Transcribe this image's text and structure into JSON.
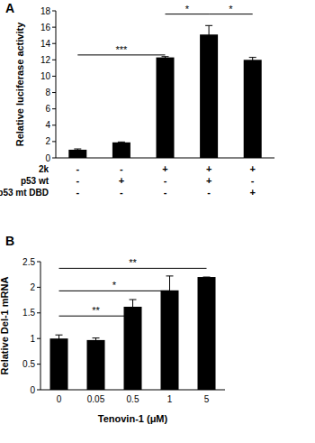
{
  "chart_data": [
    {
      "type": "bar",
      "title": "A",
      "y_label": "Relative luciferase activity",
      "categories": [
        null,
        null,
        null,
        null,
        null
      ],
      "values": [
        1.0,
        1.9,
        12.3,
        15.1,
        12.0
      ],
      "errors": [
        0.1,
        0.05,
        0.1,
        1.1,
        0.3
      ],
      "color": "#000000",
      "ylim": [
        0,
        18
      ],
      "yticks": [
        0,
        2,
        4,
        6,
        8,
        10,
        12,
        14,
        16,
        18
      ],
      "grid": false,
      "table": {
        "rows": [
          {
            "label": "2k",
            "values": [
              "-",
              "-",
              "+",
              "+",
              "+"
            ]
          },
          {
            "label": "p53 wt",
            "values": [
              "-",
              "+",
              "-",
              "+",
              "-"
            ]
          },
          {
            "label": "p53 mt DBD",
            "values": [
              "-",
              "-",
              "-",
              "-",
              "+"
            ]
          }
        ]
      },
      "annotations": [
        {
          "text": "***",
          "x1": 0,
          "x2": 2,
          "y": 12.6
        },
        {
          "text": "*",
          "x1": 2,
          "x2": 3,
          "y": 17.6
        },
        {
          "text": "*",
          "x1": 3,
          "x2": 4,
          "y": 17.6
        }
      ]
    },
    {
      "type": "bar",
      "title": "B",
      "y_label": "Relative Del-1 mRNA",
      "x_label": "Tenovin-1 (μM)",
      "categories": [
        "0",
        "0.05",
        "0.5",
        "1",
        "5"
      ],
      "values": [
        1.0,
        0.97,
        1.62,
        1.94,
        2.2
      ],
      "errors": [
        0.07,
        0.04,
        0.14,
        0.28,
        0.0
      ],
      "color": "#000000",
      "ylim": [
        0,
        2.5
      ],
      "yticks": [
        0,
        0.5,
        1,
        1.5,
        2,
        2.5
      ],
      "grid": false,
      "annotations": [
        {
          "text": "**",
          "x1": 0,
          "x2": 2,
          "y": 1.44
        },
        {
          "text": "*",
          "x1": 0,
          "x2": 3,
          "y": 1.93
        },
        {
          "text": "**",
          "x1": 0,
          "x2": 4,
          "y": 2.37
        }
      ]
    }
  ]
}
